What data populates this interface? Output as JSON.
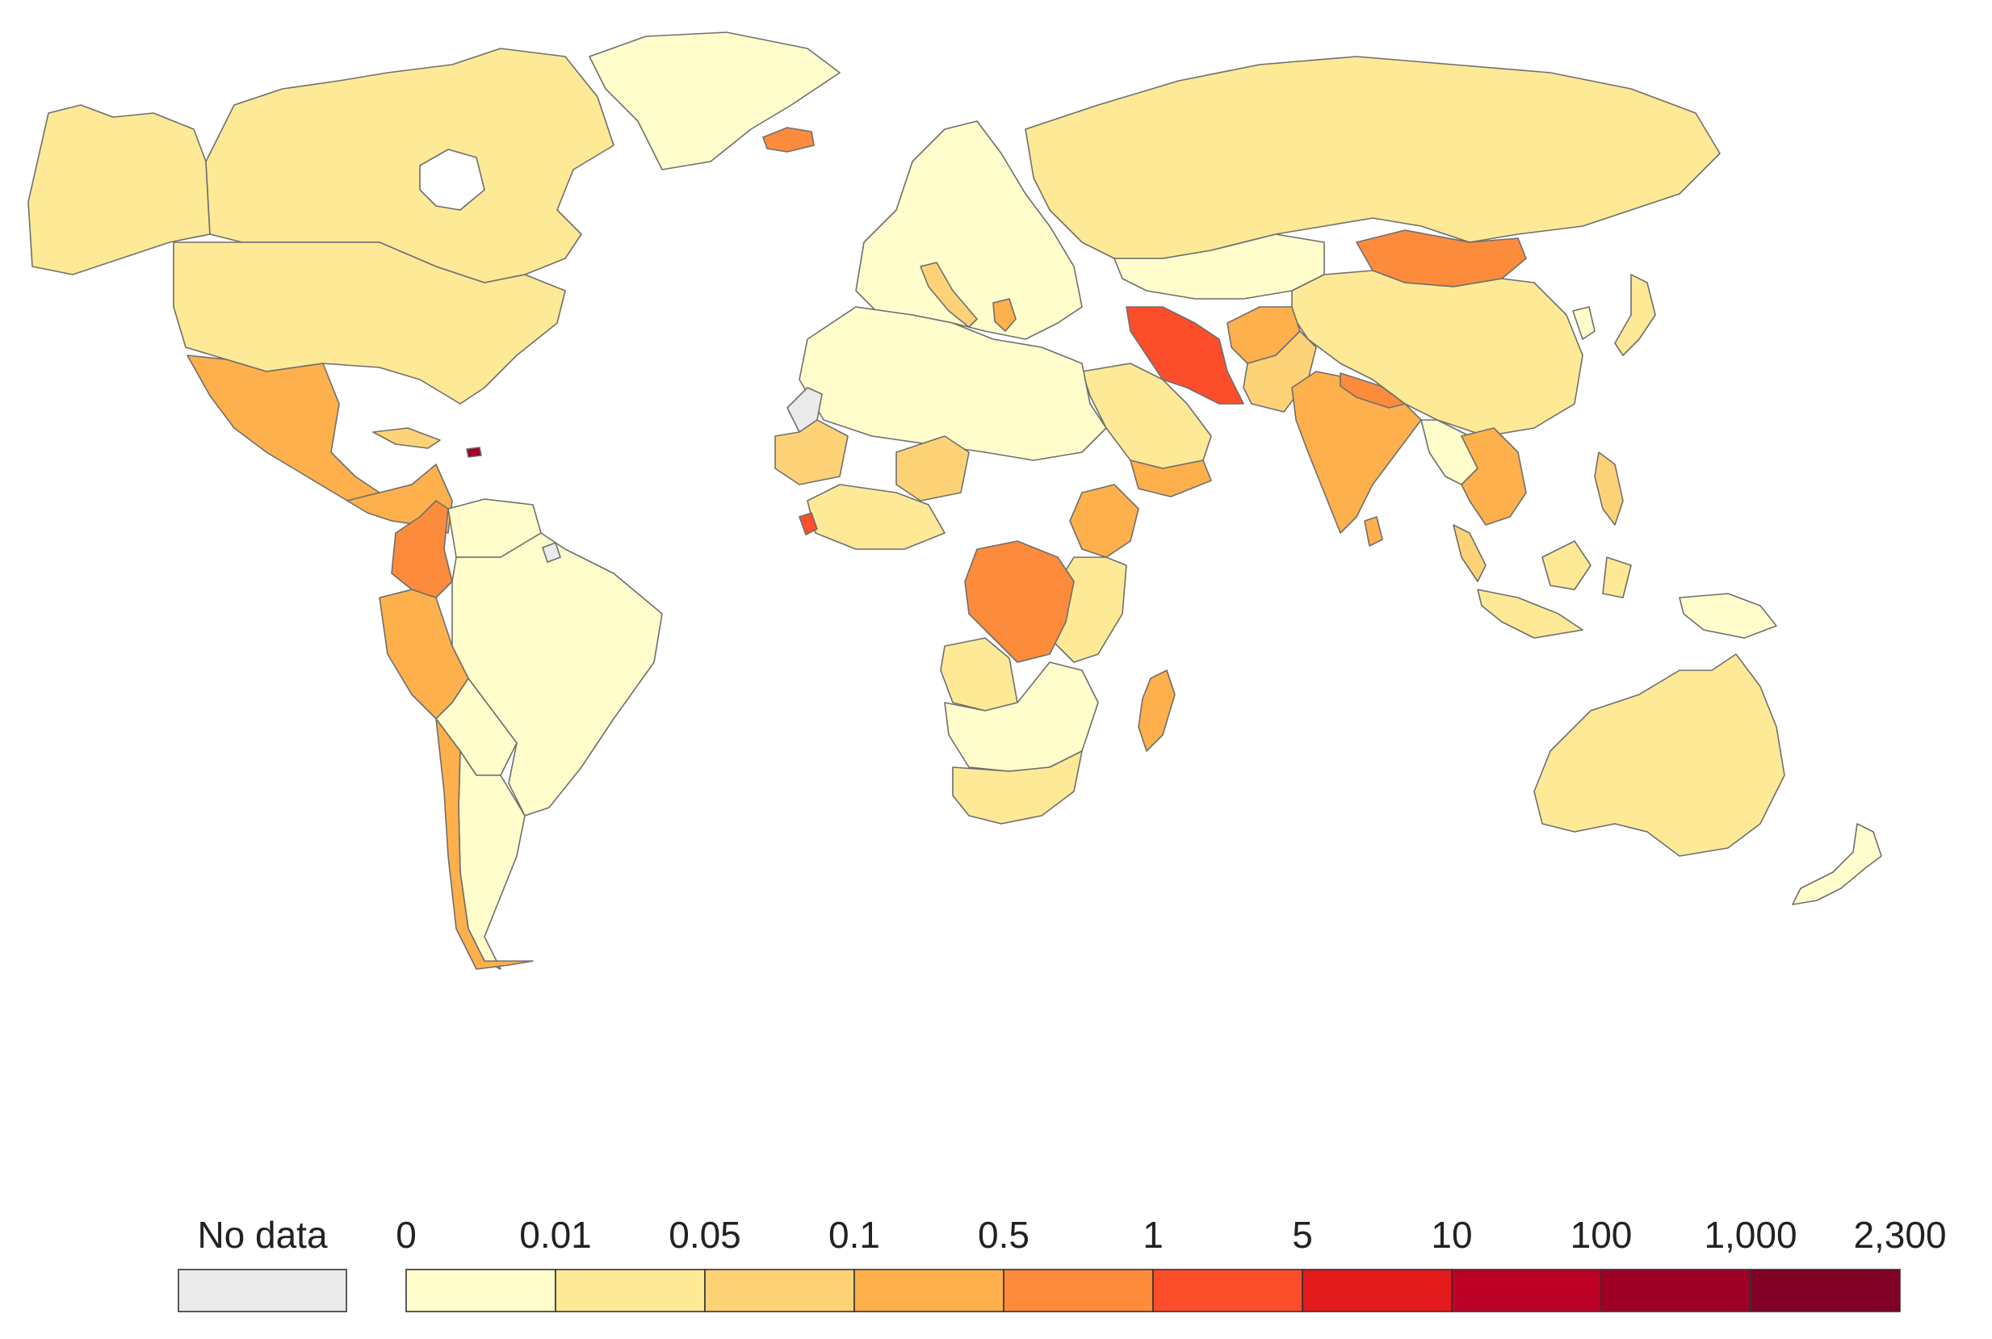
{
  "colors": {
    "no_data": "#ebebeb",
    "bins": [
      "#fffdcc",
      "#fee997",
      "#fed378",
      "#fdb04b",
      "#fd8b3c",
      "#fc4e2a",
      "#e31a1c",
      "#bd0026",
      "#9e0026",
      "#800026"
    ],
    "border": "#6e6e6e",
    "ocean": "#ffffff"
  },
  "legend": {
    "no_data_label": "No data",
    "tick_labels": [
      "0",
      "0.01",
      "0.05",
      "0.1",
      "0.5",
      "1",
      "5",
      "10",
      "100",
      "1,000",
      "2,300"
    ]
  },
  "countries": [
    {
      "name": "Canada",
      "bin": 1
    },
    {
      "name": "United States",
      "bin": 1
    },
    {
      "name": "Alaska",
      "bin": 1
    },
    {
      "name": "Greenland",
      "bin": 0
    },
    {
      "name": "Iceland",
      "bin": 4
    },
    {
      "name": "Mexico",
      "bin": 3
    },
    {
      "name": "Central America",
      "bin": 3
    },
    {
      "name": "Cuba",
      "bin": 2
    },
    {
      "name": "Haiti",
      "bin": 8
    },
    {
      "name": "Colombia",
      "bin": 4
    },
    {
      "name": "Venezuela",
      "bin": 0
    },
    {
      "name": "Peru",
      "bin": 3
    },
    {
      "name": "Chile",
      "bin": 3
    },
    {
      "name": "Brazil",
      "bin": 0
    },
    {
      "name": "Argentina",
      "bin": 0
    },
    {
      "name": "South America (other)",
      "bin": 0
    },
    {
      "name": "Western Sahara",
      "bin": -1
    },
    {
      "name": "French Guiana",
      "bin": -1
    },
    {
      "name": "Europe",
      "bin": 0
    },
    {
      "name": "Italy",
      "bin": 2
    },
    {
      "name": "Greece",
      "bin": 3
    },
    {
      "name": "Russia",
      "bin": 1
    },
    {
      "name": "Kazakhstan",
      "bin": 0
    },
    {
      "name": "Mongolia",
      "bin": 4
    },
    {
      "name": "China",
      "bin": 1
    },
    {
      "name": "Iran",
      "bin": 5
    },
    {
      "name": "Afghanistan",
      "bin": 3
    },
    {
      "name": "Pakistan",
      "bin": 2
    },
    {
      "name": "India",
      "bin": 3
    },
    {
      "name": "Nepal",
      "bin": 4
    },
    {
      "name": "Sri Lanka",
      "bin": 3
    },
    {
      "name": "Saudi Arabia",
      "bin": 1
    },
    {
      "name": "Yemen",
      "bin": 3
    },
    {
      "name": "Southeast Asia",
      "bin": 0
    },
    {
      "name": "Indochina",
      "bin": 3
    },
    {
      "name": "Malaysia",
      "bin": 2
    },
    {
      "name": "Indonesia",
      "bin": 1
    },
    {
      "name": "Philippines",
      "bin": 2
    },
    {
      "name": "Japan",
      "bin": 1
    },
    {
      "name": "Korea",
      "bin": 0
    },
    {
      "name": "Papua New Guinea",
      "bin": 0
    },
    {
      "name": "Australia",
      "bin": 1
    },
    {
      "name": "New Zealand",
      "bin": 0
    },
    {
      "name": "North Africa",
      "bin": 0
    },
    {
      "name": "Mauritania",
      "bin": 2
    },
    {
      "name": "Niger",
      "bin": 2
    },
    {
      "name": "West Africa coast",
      "bin": 1
    },
    {
      "name": "Sierra Leone",
      "bin": 5
    },
    {
      "name": "Ethiopia",
      "bin": 3
    },
    {
      "name": "DR Congo",
      "bin": 4
    },
    {
      "name": "East Africa",
      "bin": 1
    },
    {
      "name": "Angola",
      "bin": 1
    },
    {
      "name": "Southern Africa",
      "bin": 0
    },
    {
      "name": "South Africa",
      "bin": 1
    },
    {
      "name": "Madagascar",
      "bin": 3
    }
  ]
}
